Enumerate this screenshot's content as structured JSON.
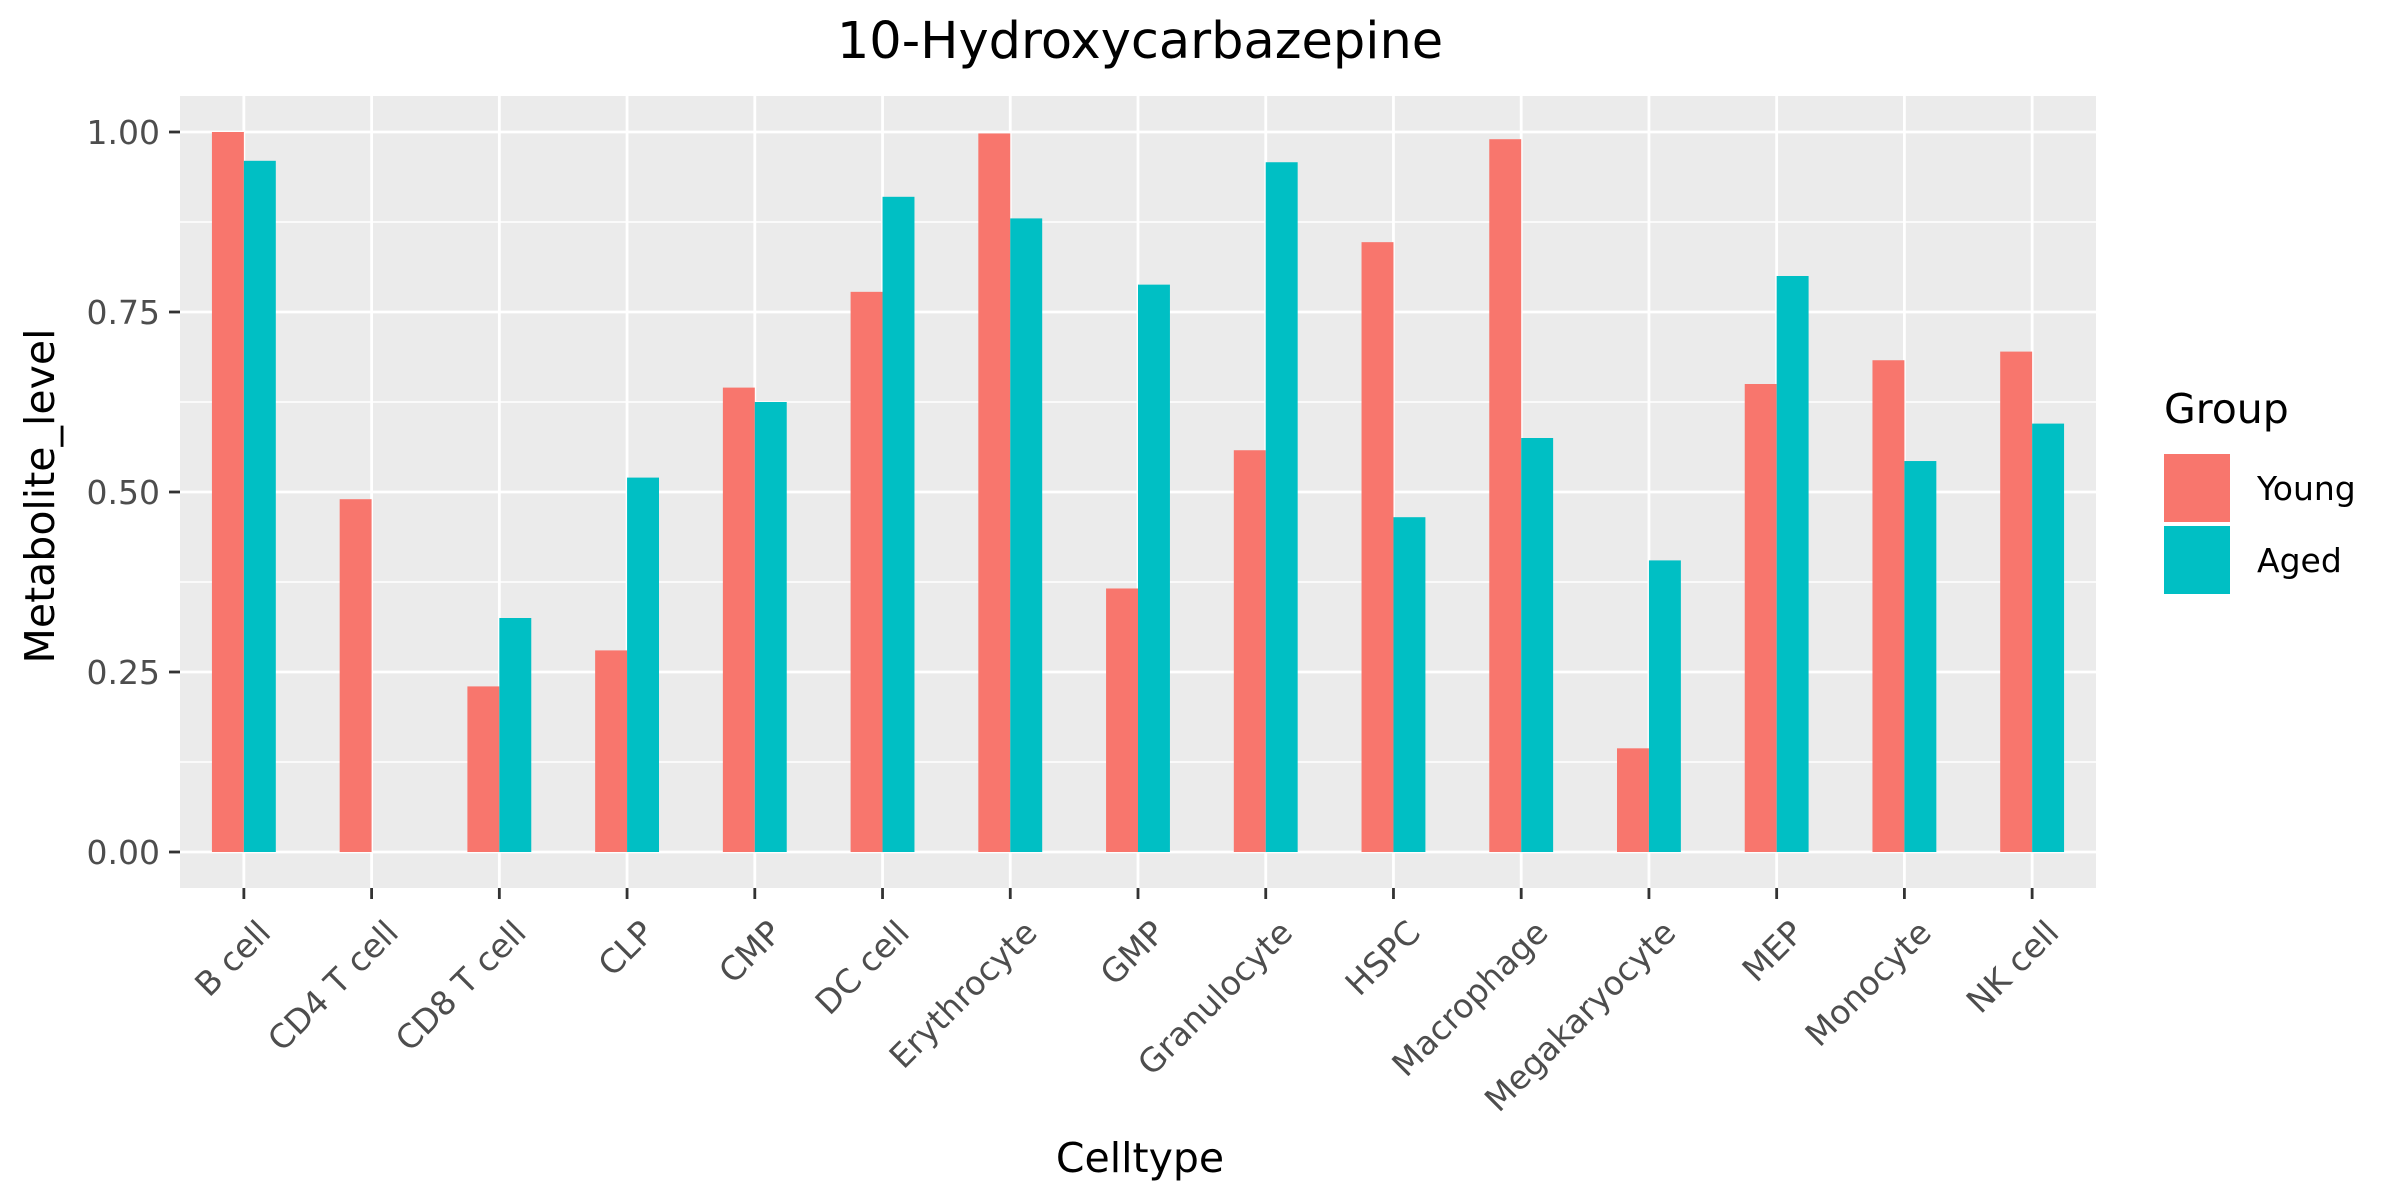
{
  "chart_data": {
    "type": "bar",
    "title": "10-Hydroxycarbazepine",
    "xlabel": "Celltype",
    "ylabel": "Metabolite_level",
    "ylim": [
      -0.05,
      1.05
    ],
    "yticks": [
      0.0,
      0.25,
      0.5,
      0.75,
      1.0
    ],
    "ytick_labels": [
      "0.00",
      "0.25",
      "0.50",
      "0.75",
      "1.00"
    ],
    "categories": [
      "B cell",
      "CD4 T cell",
      "CD8 T cell",
      "CLP",
      "CMP",
      "DC cell",
      "Erythrocyte",
      "GMP",
      "Granulocyte",
      "HSPC",
      "Macrophage",
      "Megakaryocyte",
      "MEP",
      "Monocyte",
      "NK cell"
    ],
    "series": [
      {
        "name": "Young",
        "color": "#F8766D",
        "values": [
          1.0,
          0.49,
          0.23,
          0.28,
          0.645,
          0.778,
          0.998,
          0.366,
          0.558,
          0.847,
          0.99,
          0.144,
          0.65,
          0.683,
          0.695
        ]
      },
      {
        "name": "Aged",
        "color": "#00BFC4",
        "values": [
          0.96,
          0.0,
          0.325,
          0.52,
          0.625,
          0.91,
          0.88,
          0.788,
          0.958,
          0.465,
          0.575,
          0.405,
          0.8,
          0.543,
          0.595
        ]
      }
    ],
    "grid": true,
    "legend": {
      "title": "Group",
      "position": "right"
    },
    "panel_background": "#EBEBEB",
    "grid_color": "#FFFFFF"
  }
}
